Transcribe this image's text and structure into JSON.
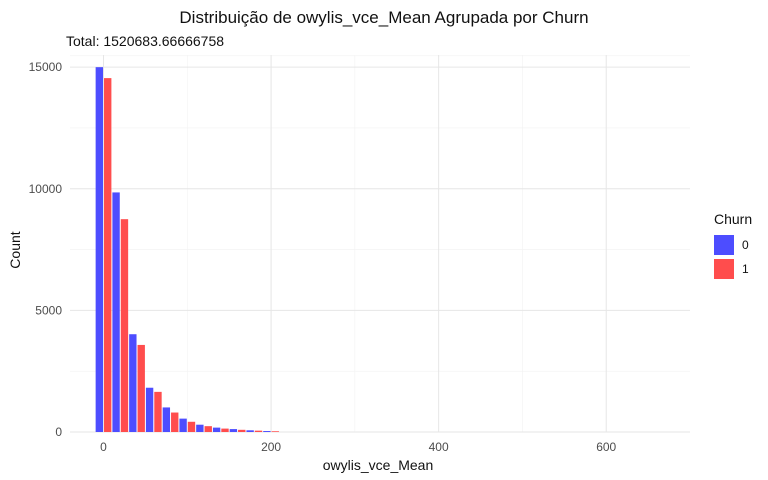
{
  "chart_data": {
    "type": "bar",
    "title": "Distribuição de owylis_vce_Mean Agrupada por Churn",
    "subtitle": "Total: 1520683.66666758",
    "xlabel": "owylis_vce_Mean",
    "ylabel": "Count",
    "xlim": [
      -40,
      700
    ],
    "ylim": [
      0,
      15500
    ],
    "x_ticks": [
      0,
      200,
      400,
      600
    ],
    "y_ticks": [
      0,
      5000,
      10000,
      15000
    ],
    "bin_centers": [
      0,
      20,
      40,
      60,
      80,
      100,
      120,
      140,
      160,
      180,
      200
    ],
    "legend": {
      "title": "Churn",
      "position": "right"
    },
    "series": [
      {
        "name": "0",
        "color": "#4d4dff",
        "values": [
          15000,
          9850,
          4020,
          1820,
          1010,
          550,
          300,
          180,
          120,
          70,
          40
        ]
      },
      {
        "name": "1",
        "color": "#ff4d4d",
        "values": [
          14550,
          8750,
          3580,
          1650,
          800,
          420,
          240,
          140,
          90,
          55,
          30
        ]
      }
    ]
  }
}
